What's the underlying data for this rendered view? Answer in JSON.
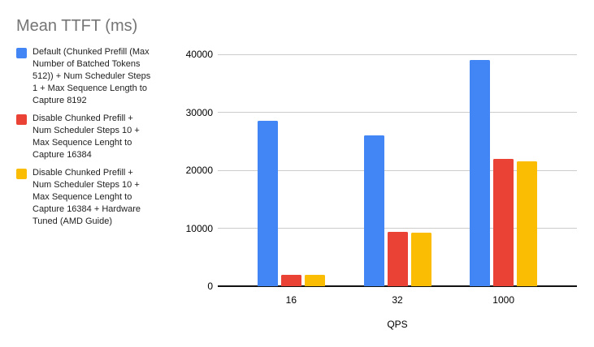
{
  "title": "Mean TTFT (ms)",
  "legend": {
    "position": "left",
    "items": [
      {
        "color": "#4285F4",
        "label": "Default (Chunked Prefill (Max Number of Batched Tokens 512)) + Num Scheduler Steps 1 + Max Sequence Length to Capture 8192",
        "label_lines": [
          "Default (Chunked Prefill (Max",
          "Number of Batched Tokens",
          "512)) + Num Scheduler Steps",
          "1 + Max Sequence Length to",
          "Capture 8192"
        ]
      },
      {
        "color": "#EA4335",
        "label": "Disable Chunked Prefill + Num Scheduler Steps 10 + Max Sequence Lenght to Capture 16384",
        "label_lines": [
          "Disable Chunked Prefill +",
          "Num Scheduler Steps 10 +",
          "Max Sequence Lenght to",
          "Capture 16384"
        ]
      },
      {
        "color": "#FBBC04",
        "label": "Disable Chunked Prefill + Num Scheduler Steps 10 + Max Sequence Lenght to Capture 16384 + Hardware Tuned (AMD Guide)",
        "label_lines": [
          "Disable Chunked Prefill +",
          "Num Scheduler Steps 10 +",
          "Max Sequence Lenght to",
          "Capture 16384 + Hardware",
          "Tuned (AMD Guide)"
        ]
      }
    ]
  },
  "chart_data": {
    "type": "bar",
    "title": "Mean TTFT (ms)",
    "categories": [
      "16",
      "32",
      "1000"
    ],
    "series": [
      {
        "name": "Default (Chunked Prefill (Max Number of Batched Tokens 512)) + Num Scheduler Steps 1 + Max Sequence Length to Capture 8192",
        "color": "#4285F4",
        "values": [
          28500,
          26000,
          39000
        ]
      },
      {
        "name": "Disable Chunked Prefill + Num Scheduler Steps 10 + Max Sequence Lenght to Capture 16384",
        "color": "#EA4335",
        "values": [
          1900,
          9400,
          22000
        ]
      },
      {
        "name": "Disable Chunked Prefill + Num Scheduler Steps 10 + Max Sequence Lenght to Capture 16384 + Hardware Tuned (AMD Guide)",
        "color": "#FBBC04",
        "values": [
          1900,
          9200,
          21500
        ]
      }
    ],
    "xlabel": "QPS",
    "ylabel": "",
    "ylim": [
      0,
      40000
    ],
    "ytick_step": 10000,
    "ytick_labels": [
      "0",
      "10000",
      "20000",
      "30000",
      "40000"
    ],
    "grid": true,
    "legend_position": "left"
  },
  "palette": {
    "background": "#FFFFFF",
    "title_text": "#757575",
    "legend_text": "#212121",
    "axis_text": "#000000",
    "gridline": "#CCCCCC",
    "axis_line": "#111111"
  }
}
